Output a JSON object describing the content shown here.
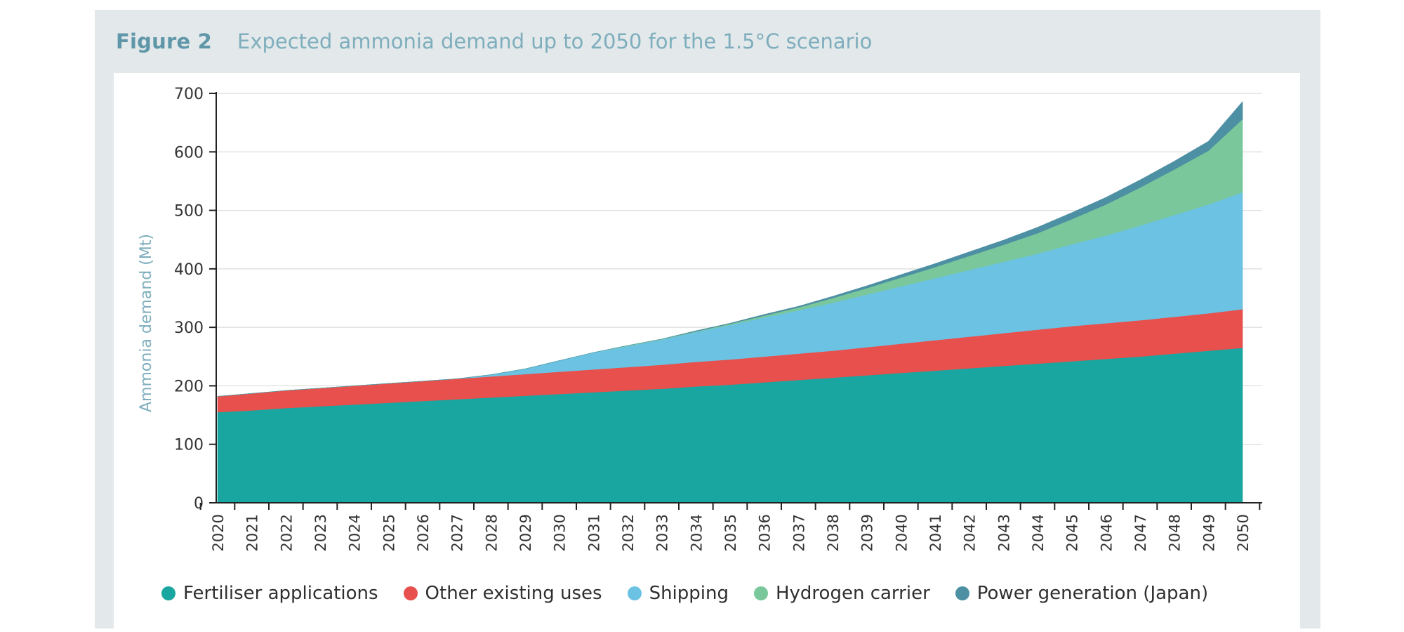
{
  "figure": {
    "number": "Figure 2",
    "title": "Expected ammonia demand up to 2050 for the 1.5°C scenario"
  },
  "chart_data": {
    "type": "area",
    "stacked": true,
    "title": "Expected ammonia demand up to 2050 for the 1.5°C scenario",
    "xlabel": "",
    "ylabel": "Ammonia demand (Mt)",
    "ylim": [
      0,
      700
    ],
    "yticks": [
      0,
      100,
      200,
      300,
      400,
      500,
      600,
      700
    ],
    "grid": true,
    "legend_position": "bottom",
    "x": [
      "2020",
      "2021",
      "2022",
      "2023",
      "2024",
      "2025",
      "2026",
      "2027",
      "2028",
      "2029",
      "2030",
      "2031",
      "2032",
      "2033",
      "2034",
      "2035",
      "2036",
      "2037",
      "2038",
      "2039",
      "2040",
      "2041",
      "2042",
      "2043",
      "2044",
      "2045",
      "2046",
      "2047",
      "2048",
      "2049",
      "2050"
    ],
    "series": [
      {
        "name": "Fertiliser applications",
        "color": "#1aa6a0",
        "values": [
          155,
          158,
          162,
          165,
          168,
          171,
          174,
          177,
          180,
          183,
          186,
          189,
          192,
          195,
          199,
          202,
          206,
          210,
          214,
          218,
          222,
          226,
          230,
          234,
          238,
          242,
          246,
          250,
          255,
          260,
          265
        ]
      },
      {
        "name": "Other existing uses",
        "color": "#e7504c",
        "values": [
          27,
          29,
          30,
          31,
          32,
          33,
          34,
          35,
          36,
          37,
          38,
          39,
          40,
          41,
          42,
          43,
          44,
          45,
          46,
          48,
          50,
          52,
          54,
          56,
          58,
          60,
          61,
          62,
          63,
          64,
          66
        ]
      },
      {
        "name": "Shipping",
        "color": "#6bc2e3",
        "values": [
          0,
          0,
          0,
          0,
          0,
          0,
          0,
          0,
          3,
          9,
          19,
          29,
          36,
          43,
          51,
          59,
          67,
          74,
          82,
          90,
          98,
          106,
          114,
          122,
          130,
          140,
          150,
          162,
          174,
          186,
          200
        ]
      },
      {
        "name": "Hydrogen carrier",
        "color": "#79c79b",
        "values": [
          0,
          0,
          0,
          0,
          0,
          0,
          0,
          0,
          0,
          0,
          0,
          0,
          1,
          1,
          1,
          2,
          3,
          5,
          8,
          11,
          15,
          19,
          24,
          29,
          35,
          43,
          53,
          65,
          78,
          92,
          125
        ]
      },
      {
        "name": "Power generation (Japan)",
        "color": "#4d8fa3",
        "values": [
          0,
          0,
          0,
          0,
          0,
          0,
          0,
          0,
          0,
          0,
          0,
          0,
          0,
          0,
          1,
          1,
          2,
          2,
          3,
          4,
          5,
          6,
          7,
          8,
          10,
          11,
          12,
          13,
          14,
          16,
          30
        ]
      }
    ]
  }
}
